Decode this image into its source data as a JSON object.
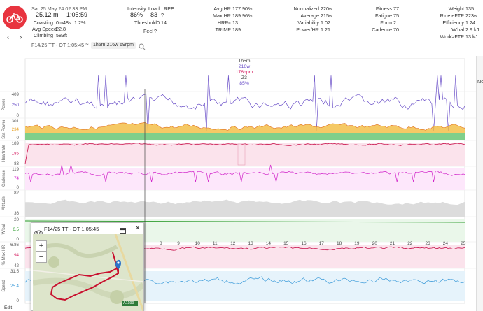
{
  "activity": {
    "datetime": "Sat 25 May 24 02:33 PM",
    "distance": "25.12 mi",
    "duration": "1:05:59",
    "coasting_label": "Coasting",
    "coasting_value": "0m48s",
    "coasting_pct": "1.2%",
    "avg_speed_label": "Avg Speed",
    "avg_speed_value": "22.8",
    "climbing_label": "Climbing",
    "climbing_value": "583ft",
    "title_row": "F14/25 TT - OT 1:05:45",
    "selection_chip": "1h5m 216w 69rpm"
  },
  "metrics_col1": {
    "intensity_label": "Intensity",
    "intensity_value": "86%",
    "load_label": "Load",
    "load_value": "83",
    "rpe_label": "RPE",
    "threshold_label": "Threshold",
    "threshold_value": "0.14",
    "feel_label": "Feel"
  },
  "metrics_col2": [
    {
      "label": "Avg HR",
      "value": "177",
      "extra": "90%"
    },
    {
      "label": "Max HR",
      "value": "189",
      "extra": "96%"
    },
    {
      "label": "HRRc",
      "value": "13",
      "extra": ""
    },
    {
      "label": "TRIMP",
      "value": "189",
      "extra": ""
    }
  ],
  "metrics_col3": [
    {
      "label": "Normalized",
      "value": "220w"
    },
    {
      "label": "Average",
      "value": "215w"
    },
    {
      "label": "Variability",
      "value": "1.02"
    },
    {
      "label": "Power/HR",
      "value": "1.21"
    }
  ],
  "metrics_col4": [
    {
      "label": "Fitness",
      "value": "77"
    },
    {
      "label": "Fatigue",
      "value": "75"
    },
    {
      "label": "Form",
      "value": "2"
    },
    {
      "label": "Cadence",
      "value": "70"
    }
  ],
  "metrics_col5": [
    {
      "label": "Weight",
      "value": "135"
    },
    {
      "label": "Ride eFTP",
      "value": "223w"
    },
    {
      "label": "Efficiency",
      "value": "1.24"
    },
    {
      "label": "W'bal",
      "value": "2.9 kJ"
    },
    {
      "label": "Work>FTP",
      "value": "13 kJ"
    }
  ],
  "hover": {
    "time": "1h5m",
    "power": "216w",
    "hr": "176bpm",
    "zone": "Z3",
    "pct": "85%"
  },
  "tracks": [
    {
      "name": "Power",
      "ticks": [
        "409",
        "250",
        "0"
      ],
      "color": "#6a4fc8"
    },
    {
      "name": "Sta Power",
      "ticks": [
        "301",
        "234",
        "0"
      ],
      "color": "#e8a020"
    },
    {
      "name": "Heartrate",
      "ticks": [
        "189",
        "185",
        "83"
      ],
      "color": "#d4145a"
    },
    {
      "name": "Cadence",
      "ticks": [
        "119",
        "74",
        "0"
      ],
      "color": "#d020c8"
    },
    {
      "name": "Altitude",
      "ticks": [
        "82",
        "36"
      ],
      "color": "#999999"
    },
    {
      "name": "W'bal",
      "ticks": [
        "20",
        "6.5",
        "0"
      ],
      "color": "#2a9a2a"
    },
    {
      "name": "% Max HR",
      "ticks": [
        "6.86",
        "94",
        "42"
      ],
      "color": "#d4145a"
    },
    {
      "name": "Speed",
      "ticks": [
        "31.5",
        "25.4",
        "0"
      ],
      "color": "#3a9ad9"
    }
  ],
  "mile_ticks": [
    "8",
    "9",
    "10",
    "11",
    "12",
    "13",
    "14",
    "15",
    "16",
    "17",
    "18",
    "19",
    "20",
    "21",
    "22",
    "23",
    "24",
    "25"
  ],
  "map_popup": {
    "title": "F14/25 TT - OT 1:05:45",
    "zoom_in": "+",
    "zoom_out": "−",
    "road_label": "A1199"
  },
  "right_edge_text": "No",
  "bottom_edge_text": "Edit",
  "colors": {
    "accent": "#e8343f"
  }
}
